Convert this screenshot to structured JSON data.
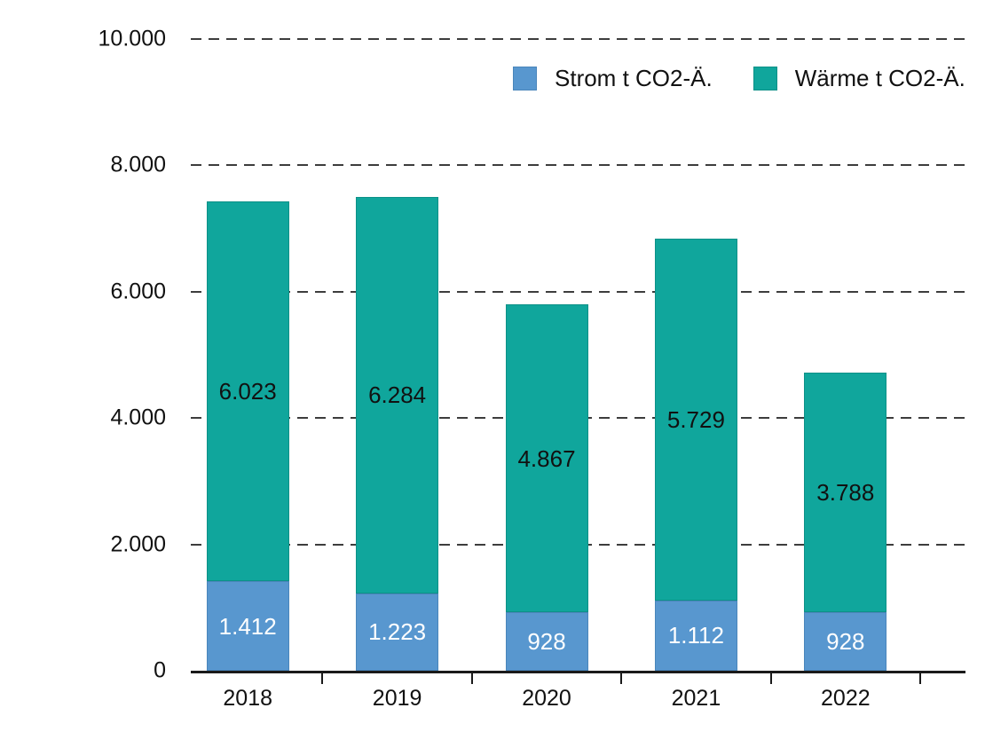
{
  "chart_data": {
    "type": "bar",
    "stacked": true,
    "title": "",
    "categories": [
      "2018",
      "2019",
      "2020",
      "2021",
      "2022"
    ],
    "series": [
      {
        "key": "strom",
        "name": "Strom t CO2-Ä.",
        "color": "#5897CF",
        "border_color": "#4a86bb",
        "label_color": "#ffffff",
        "values": [
          1412,
          1223,
          928,
          1112,
          928
        ],
        "labels": [
          "1.412",
          "1.223",
          "928",
          "1.112",
          "928"
        ]
      },
      {
        "key": "waerme",
        "name": "Wärme t CO2-Ä.",
        "color": "#10A69C",
        "border_color": "#0d9188",
        "label_color": "#111111",
        "values": [
          6023,
          6284,
          4867,
          5729,
          3788
        ],
        "labels": [
          "6.023",
          "6.284",
          "4.867",
          "5.729",
          "3.788"
        ]
      }
    ],
    "xlabel": "",
    "ylabel": "",
    "ylim": [
      0,
      10000
    ],
    "yticks": [
      {
        "value": 0,
        "label": "0"
      },
      {
        "value": 2000,
        "label": "2.000"
      },
      {
        "value": 4000,
        "label": "4.000"
      },
      {
        "value": 6000,
        "label": "6.000"
      },
      {
        "value": 8000,
        "label": "8.000"
      },
      {
        "value": 10000,
        "label": "10.000"
      }
    ],
    "grid": "horizontal-dashed",
    "legend_position": "top-right",
    "axis_color": "#1a1a1a",
    "gridline_color": "#3d3d3d",
    "background": "#ffffff"
  }
}
